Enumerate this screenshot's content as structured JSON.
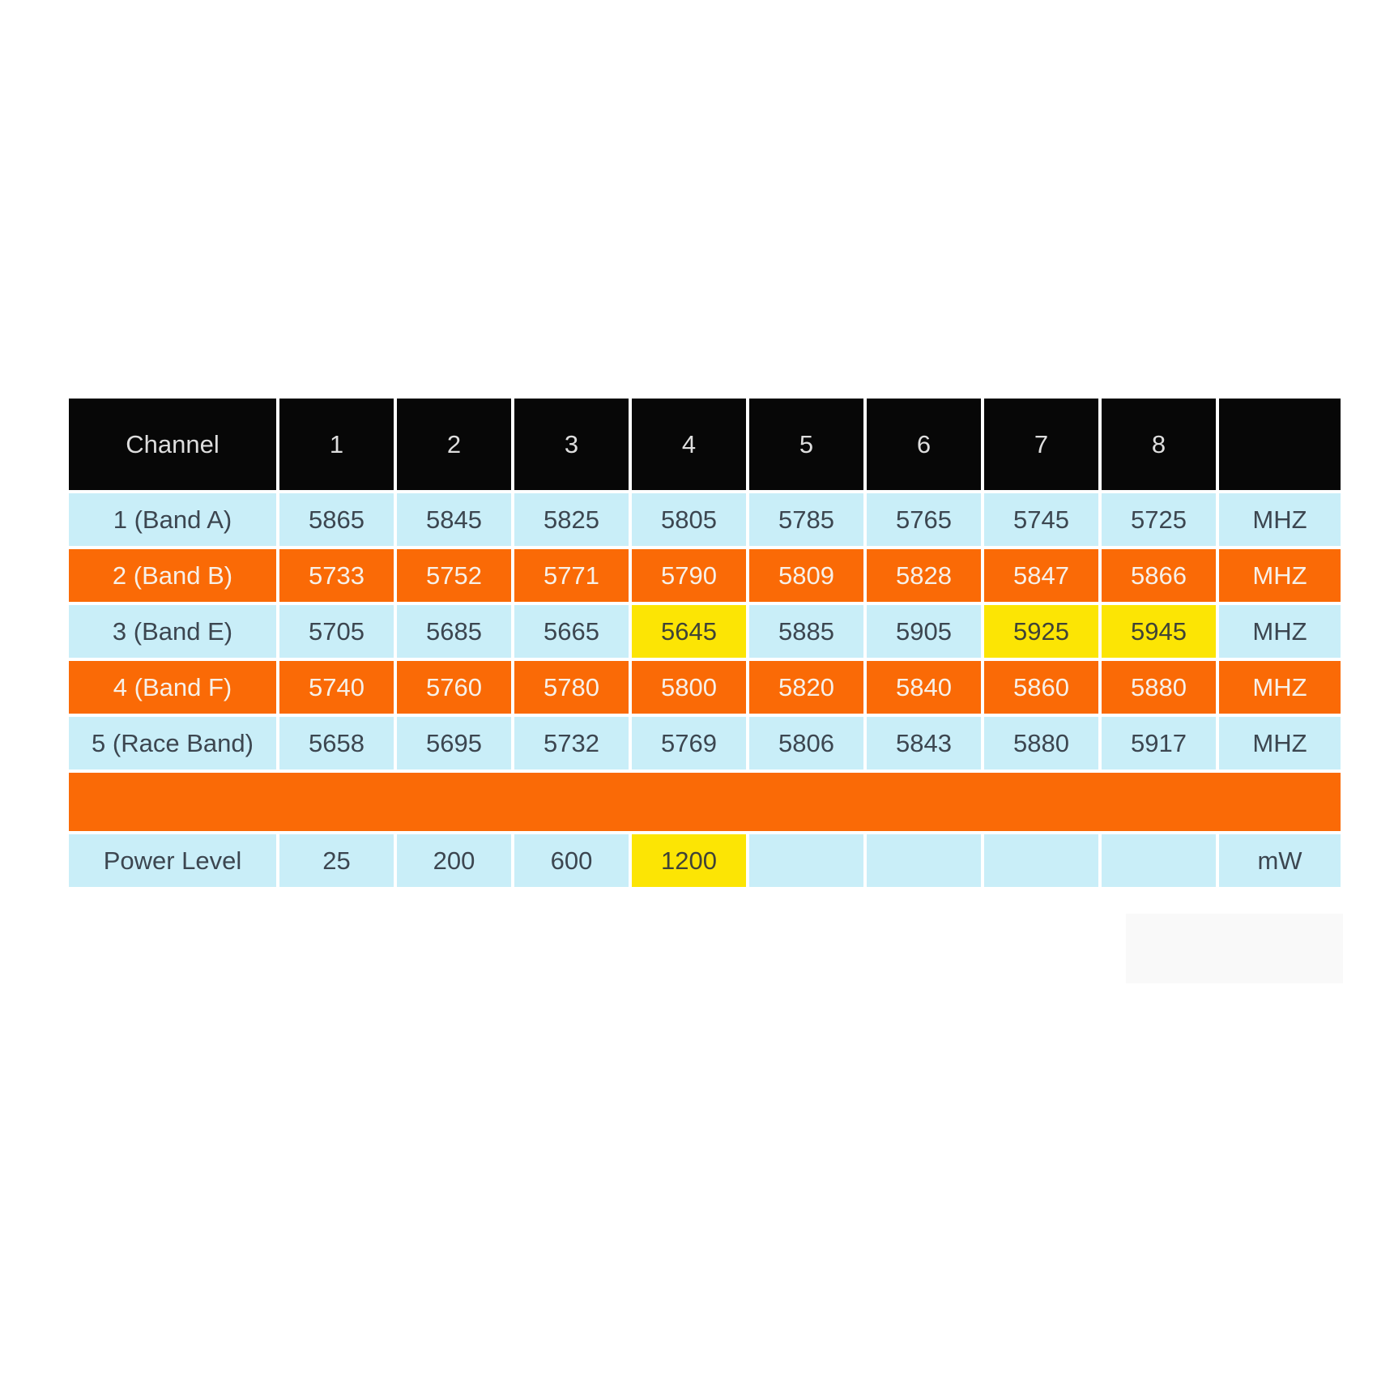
{
  "colors": {
    "header_black": "#070707",
    "light_blue": "#c9eef8",
    "orange": "#fa6a06",
    "highlight_yellow": "#fce504",
    "dark_text": "#3c4650",
    "header_text": "#dedede"
  },
  "table": {
    "header": {
      "cols": [
        "Channel",
        "1",
        "2",
        "3",
        "4",
        "5",
        "6",
        "7",
        "8",
        ""
      ]
    },
    "rows": [
      {
        "label": "1 (Band A)",
        "cells": [
          "5865",
          "5845",
          "5825",
          "5805",
          "5785",
          "5765",
          "5745",
          "5725"
        ],
        "unit": "MHZ"
      },
      {
        "label": "2 (Band B)",
        "cells": [
          "5733",
          "5752",
          "5771",
          "5790",
          "5809",
          "5828",
          "5847",
          "5866"
        ],
        "unit": "MHZ"
      },
      {
        "label": "3 (Band E)",
        "cells": [
          "5705",
          "5685",
          "5665",
          "5645",
          "5885",
          "5905",
          "5925",
          "5945"
        ],
        "unit": "MHZ"
      },
      {
        "label": "4 (Band F)",
        "cells": [
          "5740",
          "5760",
          "5780",
          "5800",
          "5820",
          "5840",
          "5860",
          "5880"
        ],
        "unit": "MHZ"
      },
      {
        "label": "5 (Race Band)",
        "cells": [
          "5658",
          "5695",
          "5732",
          "5769",
          "5806",
          "5843",
          "5880",
          "5917"
        ],
        "unit": "MHZ"
      }
    ],
    "power": {
      "label": "Power Level",
      "cells": [
        "25",
        "200",
        "600",
        "1200",
        "",
        "",
        "",
        ""
      ],
      "unit": "mW"
    }
  },
  "chart_data": {
    "type": "table",
    "columns": [
      "Channel",
      "1",
      "2",
      "3",
      "4",
      "5",
      "6",
      "7",
      "8",
      ""
    ],
    "rows": [
      {
        "label": "1 (Band A)",
        "values": [
          5865,
          5845,
          5825,
          5805,
          5785,
          5765,
          5745,
          5725
        ],
        "unit": "MHZ",
        "row_color": "light_blue",
        "highlighted_channels": []
      },
      {
        "label": "2 (Band B)",
        "values": [
          5733,
          5752,
          5771,
          5790,
          5809,
          5828,
          5847,
          5866
        ],
        "unit": "MHZ",
        "row_color": "orange",
        "highlighted_channels": []
      },
      {
        "label": "3 (Band E)",
        "values": [
          5705,
          5685,
          5665,
          5645,
          5885,
          5905,
          5925,
          5945
        ],
        "unit": "MHZ",
        "row_color": "light_blue",
        "highlighted_channels": [
          4,
          7,
          8
        ]
      },
      {
        "label": "4 (Band F)",
        "values": [
          5740,
          5760,
          5780,
          5800,
          5820,
          5840,
          5860,
          5880
        ],
        "unit": "MHZ",
        "row_color": "orange",
        "highlighted_channels": []
      },
      {
        "label": "5 (Race Band)",
        "values": [
          5658,
          5695,
          5732,
          5769,
          5806,
          5843,
          5880,
          5917
        ],
        "unit": "MHZ",
        "row_color": "light_blue",
        "highlighted_channels": []
      },
      {
        "label": "Power Level",
        "values": [
          25,
          200,
          600,
          1200,
          null,
          null,
          null,
          null
        ],
        "unit": "mW",
        "row_color": "light_blue",
        "highlighted_channels": [
          4
        ]
      }
    ],
    "layout_notes": "black header row; full-width orange separator band between Race Band row and Power Level row; yellow cells mark selected/highlighted values"
  }
}
